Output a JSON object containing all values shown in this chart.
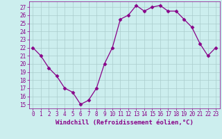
{
  "x": [
    0,
    1,
    2,
    3,
    4,
    5,
    6,
    7,
    8,
    9,
    10,
    11,
    12,
    13,
    14,
    15,
    16,
    17,
    18,
    19,
    20,
    21,
    22,
    23
  ],
  "y": [
    22,
    21,
    19.5,
    18.5,
    17,
    16.5,
    15,
    15.5,
    17,
    20,
    22,
    25.5,
    26,
    27.2,
    26.5,
    27,
    27.2,
    26.5,
    26.5,
    25.5,
    24.5,
    22.5,
    21,
    22
  ],
  "line_color": "#880088",
  "marker": "D",
  "marker_size": 2.5,
  "bg_color": "#cceeee",
  "grid_color": "#aacccc",
  "xlabel": "Windchill (Refroidissement éolien,°C)",
  "ylim": [
    14.5,
    27.7
  ],
  "xlim": [
    -0.5,
    23.5
  ],
  "yticks": [
    15,
    16,
    17,
    18,
    19,
    20,
    21,
    22,
    23,
    24,
    25,
    26,
    27
  ],
  "xticks": [
    0,
    1,
    2,
    3,
    4,
    5,
    6,
    7,
    8,
    9,
    10,
    11,
    12,
    13,
    14,
    15,
    16,
    17,
    18,
    19,
    20,
    21,
    22,
    23
  ],
  "tick_color": "#880088",
  "label_fontsize": 6.5,
  "tick_fontsize": 5.5,
  "ytick_fontsize": 5.5,
  "lw": 0.9
}
